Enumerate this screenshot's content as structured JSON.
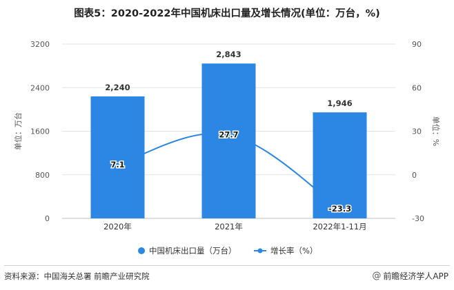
{
  "title": "图表5：2020-2022年中国机床出口量及增长情况(单位：万台，%)",
  "chart_data": {
    "type": "bar",
    "categories": [
      "2020年",
      "2021年",
      "2022年1-11月"
    ],
    "series": [
      {
        "name": "中国机床出口量（万台）",
        "type": "bar",
        "axis": "left",
        "values": [
          2240,
          2843,
          1946
        ],
        "labels": [
          "2,240",
          "2,843",
          "1,946"
        ],
        "color": "#2b87e3"
      },
      {
        "name": "增长率（%）",
        "type": "line",
        "axis": "right",
        "values": [
          7.1,
          27.7,
          -23.3
        ],
        "labels": [
          "7.1",
          "27.7",
          "-23.3"
        ],
        "color": "#2b87e3"
      }
    ],
    "y_left": {
      "label": "单位：万台",
      "min": 0,
      "max": 3200,
      "ticks": [
        "0",
        "800",
        "1600",
        "2400",
        "3200"
      ]
    },
    "y_right": {
      "label": "单位：%",
      "min": -30,
      "max": 90,
      "ticks": [
        "-30",
        "0",
        "30",
        "60",
        "90"
      ]
    },
    "grid": true,
    "legend_position": "bottom"
  },
  "legend": {
    "bar_label": "中国机床出口量（万台）",
    "line_label": "增长率（%）"
  },
  "watermark": "前瞻产业研究院",
  "footer": {
    "source": "资料来源：中国海关总署 前瞻产业研究院",
    "brand": "前瞻经济学人APP",
    "brand_icon": "at-icon"
  }
}
